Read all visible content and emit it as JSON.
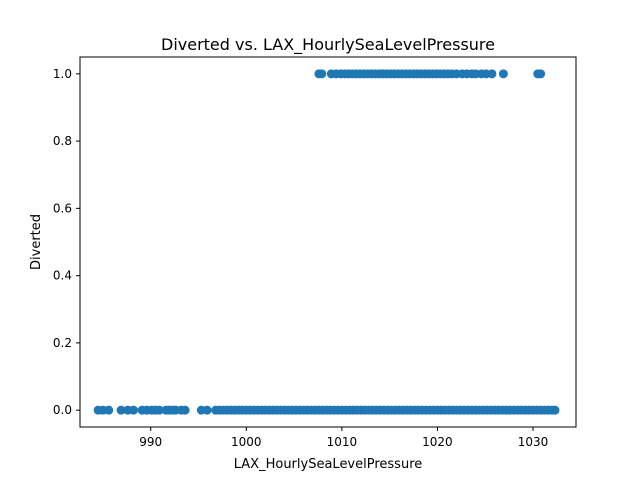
{
  "chart_data": {
    "type": "scatter",
    "title": "Diverted vs. LAX_HourlySeaLevelPressure",
    "xlabel": "LAX_HourlySeaLevelPressure",
    "ylabel": "Diverted",
    "xlim": [
      982.6,
      1034.5
    ],
    "ylim": [
      -0.05,
      1.05
    ],
    "xticks": [
      990,
      1000,
      1010,
      1020,
      1030
    ],
    "yticks": [
      0.0,
      0.2,
      0.4,
      0.6,
      0.8,
      1.0
    ],
    "xtick_labels": [
      "990",
      "1000",
      "1010",
      "1020",
      "1030"
    ],
    "ytick_labels": [
      "0.0",
      "0.2",
      "0.4",
      "0.6",
      "0.8",
      "1.0"
    ],
    "marker_color": "#1f77b4",
    "grid": false,
    "series": [
      {
        "x": [
          984.5,
          985.0,
          985.6,
          986.9,
          987.6,
          988.2,
          989.1,
          989.6,
          990.1,
          990.5,
          990.9,
          991.6,
          991.9,
          992.3,
          992.6,
          993.2,
          993.6,
          995.3,
          995.9,
          996.8,
          997.2,
          997.6,
          998.0,
          998.4,
          998.8,
          999.2,
          999.6,
          1000.0,
          1000.4,
          1000.8,
          1001.2,
          1001.6,
          1002.0,
          1002.4,
          1002.8,
          1003.2,
          1003.6,
          1004.0,
          1004.4,
          1004.8,
          1005.2,
          1005.6,
          1006.0,
          1006.4,
          1006.8,
          1007.2,
          1007.6,
          1008.0,
          1008.4,
          1008.8,
          1009.2,
          1009.6,
          1010.0,
          1010.4,
          1010.8,
          1011.2,
          1011.6,
          1012.0,
          1012.4,
          1012.8,
          1013.2,
          1013.6,
          1014.0,
          1014.4,
          1014.8,
          1015.2,
          1015.6,
          1016.0,
          1016.4,
          1016.8,
          1017.2,
          1017.6,
          1018.0,
          1018.4,
          1018.8,
          1019.2,
          1019.6,
          1020.0,
          1020.4,
          1020.8,
          1021.2,
          1021.6,
          1022.0,
          1022.4,
          1022.8,
          1023.2,
          1023.6,
          1024.0,
          1024.4,
          1024.8,
          1025.2,
          1025.6,
          1026.0,
          1026.4,
          1026.8,
          1027.2,
          1027.6,
          1028.0,
          1028.4,
          1028.8,
          1029.2,
          1029.6,
          1030.0,
          1030.4,
          1030.8,
          1031.2,
          1031.6,
          1032.0,
          1032.3,
          1007.6,
          1007.9,
          1008.9,
          1009.4,
          1009.9,
          1010.3,
          1010.7,
          1011.1,
          1011.5,
          1011.9,
          1012.3,
          1012.7,
          1013.1,
          1013.5,
          1013.9,
          1014.3,
          1014.7,
          1015.1,
          1015.5,
          1015.9,
          1016.3,
          1016.7,
          1017.1,
          1017.5,
          1017.9,
          1018.3,
          1018.7,
          1019.1,
          1019.5,
          1019.9,
          1020.3,
          1020.7,
          1021.1,
          1021.5,
          1022.0,
          1022.6,
          1023.1,
          1023.6,
          1024.0,
          1024.6,
          1025.1,
          1025.7,
          1026.9,
          1030.5,
          1030.8
        ],
        "y": [
          0,
          0,
          0,
          0,
          0,
          0,
          0,
          0,
          0,
          0,
          0,
          0,
          0,
          0,
          0,
          0,
          0,
          0,
          0,
          0,
          0,
          0,
          0,
          0,
          0,
          0,
          0,
          0,
          0,
          0,
          0,
          0,
          0,
          0,
          0,
          0,
          0,
          0,
          0,
          0,
          0,
          0,
          0,
          0,
          0,
          0,
          0,
          0,
          0,
          0,
          0,
          0,
          0,
          0,
          0,
          0,
          0,
          0,
          0,
          0,
          0,
          0,
          0,
          0,
          0,
          0,
          0,
          0,
          0,
          0,
          0,
          0,
          0,
          0,
          0,
          0,
          0,
          0,
          0,
          0,
          0,
          0,
          0,
          0,
          0,
          0,
          0,
          0,
          0,
          0,
          0,
          0,
          0,
          0,
          0,
          0,
          0,
          0,
          0,
          0,
          0,
          0,
          0,
          0,
          0,
          0,
          0,
          0,
          0,
          1,
          1,
          1,
          1,
          1,
          1,
          1,
          1,
          1,
          1,
          1,
          1,
          1,
          1,
          1,
          1,
          1,
          1,
          1,
          1,
          1,
          1,
          1,
          1,
          1,
          1,
          1,
          1,
          1,
          1,
          1,
          1,
          1,
          1,
          1,
          1,
          1,
          1,
          1,
          1,
          1,
          1,
          1,
          1,
          1
        ]
      }
    ]
  }
}
